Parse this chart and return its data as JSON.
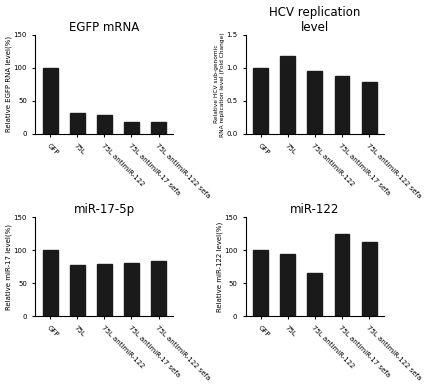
{
  "categories": [
    "GFP",
    "75L",
    "75L antimiR-122",
    "75L antimiR-17 sefa",
    "75L antimiR-122 sefa"
  ],
  "egfp_values": [
    100,
    32,
    28,
    18,
    18
  ],
  "egfp_ylim": [
    0,
    150
  ],
  "egfp_yticks": [
    0,
    50,
    100,
    150
  ],
  "egfp_ylabel": "Relative EGFP RNA level(%)",
  "egfp_title": "EGFP mRNA",
  "hcv_values": [
    1.0,
    1.18,
    0.95,
    0.88,
    0.78
  ],
  "hcv_ylim": [
    0,
    1.5
  ],
  "hcv_yticks": [
    0.0,
    0.5,
    1.0,
    1.5
  ],
  "hcv_ylabel": "Relative HCV sub-genomic\nRNA replication level (Fold Change)",
  "hcv_title": "HCV replication\nlevel",
  "mir17_values": [
    100,
    77,
    79,
    80,
    83
  ],
  "mir17_ylim": [
    0,
    150
  ],
  "mir17_yticks": [
    0,
    50,
    100,
    150
  ],
  "mir17_ylabel": "Relative miR-17 level(%)",
  "mir17_title": "miR-17-5p",
  "mir122_values": [
    100,
    95,
    65,
    125,
    112
  ],
  "mir122_ylim": [
    0,
    150
  ],
  "mir122_yticks": [
    0,
    50,
    100,
    150
  ],
  "mir122_ylabel": "Relative miR-122 level(%)",
  "mir122_title": "miR-122",
  "bar_color": "#1a1a1a",
  "bg_color": "#ffffff",
  "bar_width": 0.55,
  "tick_label_fontsize": 5.0,
  "axis_label_fontsize": 5.0,
  "title_fontsize": 8.5
}
